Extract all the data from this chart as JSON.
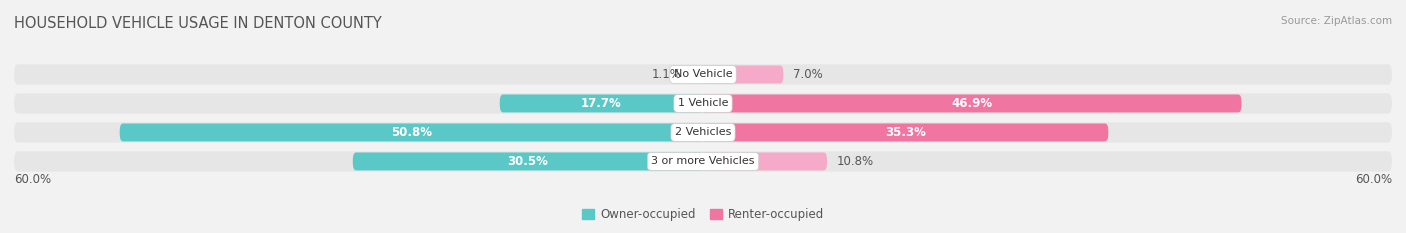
{
  "title": "HOUSEHOLD VEHICLE USAGE IN DENTON COUNTY",
  "source": "Source: ZipAtlas.com",
  "categories": [
    "No Vehicle",
    "1 Vehicle",
    "2 Vehicles",
    "3 or more Vehicles"
  ],
  "owner_values": [
    1.1,
    17.7,
    50.8,
    30.5
  ],
  "renter_values": [
    7.0,
    46.9,
    35.3,
    10.8
  ],
  "owner_color_strong": "#5BC8C8",
  "owner_color_weak": "#A8DFE0",
  "renter_color_strong": "#F075A0",
  "renter_color_weak": "#F5AACA",
  "owner_label": "Owner-occupied",
  "renter_label": "Renter-occupied",
  "axis_limit": 60.0,
  "axis_label": "60.0%",
  "background_color": "#f2f2f2",
  "bar_bg_color": "#e6e6e6",
  "title_color": "#555555",
  "value_label_color": "#555555",
  "value_label_color_white": "#ffffff",
  "label_fontsize": 8.5,
  "title_fontsize": 10.5,
  "source_fontsize": 7.5,
  "bar_height": 0.62,
  "strong_threshold": 15.0
}
